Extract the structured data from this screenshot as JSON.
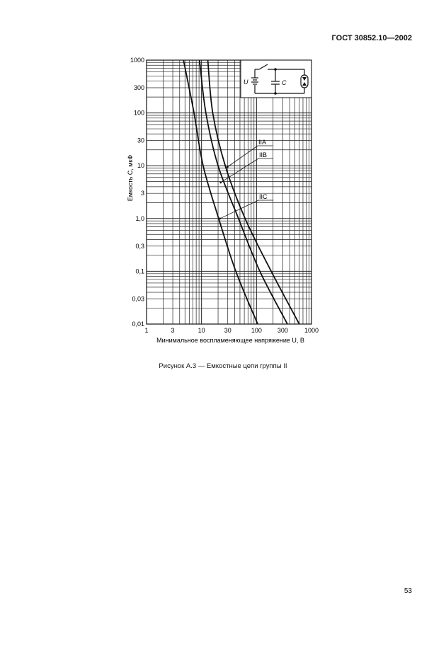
{
  "header": {
    "standard": "ГОСТ 30852.10—2002"
  },
  "caption": "Рисунок А.3 — Емкостные цепи группы II",
  "page_number": "53",
  "chart_data": {
    "type": "line",
    "title": "",
    "xlabel": "Минимальное воспламеняющее напряжение U, В",
    "ylabel": "Емкость C, мкФ",
    "x_scale": "log",
    "y_scale": "log",
    "xlim": [
      1,
      1000
    ],
    "ylim": [
      0.01,
      1000
    ],
    "grid": true,
    "x_ticks": [
      {
        "v": 1,
        "label": "1"
      },
      {
        "v": 3,
        "label": "3"
      },
      {
        "v": 10,
        "label": "10"
      },
      {
        "v": 30,
        "label": "30"
      },
      {
        "v": 100,
        "label": "100"
      },
      {
        "v": 300,
        "label": "300"
      },
      {
        "v": 1000,
        "label": "1000"
      }
    ],
    "y_ticks": [
      {
        "v": 1000,
        "label": "1000"
      },
      {
        "v": 300,
        "label": "300"
      },
      {
        "v": 100,
        "label": "100"
      },
      {
        "v": 30,
        "label": "30"
      },
      {
        "v": 10,
        "label": "10"
      },
      {
        "v": 3,
        "label": "3"
      },
      {
        "v": 1,
        "label": "1,0"
      },
      {
        "v": 0.3,
        "label": "0,3"
      },
      {
        "v": 0.1,
        "label": "0,1"
      },
      {
        "v": 0.03,
        "label": "0,03"
      },
      {
        "v": 0.01,
        "label": "0,01"
      }
    ],
    "series": [
      {
        "name": "IIA",
        "points": [
          [
            13,
            1000
          ],
          [
            16,
            100
          ],
          [
            27,
            10
          ],
          [
            62,
            1
          ],
          [
            185,
            0.1
          ],
          [
            600,
            0.01
          ]
        ]
      },
      {
        "name": "IIB",
        "points": [
          [
            9.2,
            1000
          ],
          [
            12,
            100
          ],
          [
            20,
            10
          ],
          [
            47,
            1
          ],
          [
            115,
            0.1
          ],
          [
            365,
            0.01
          ]
        ]
      },
      {
        "name": "IIC",
        "points": [
          [
            4.7,
            1000
          ],
          [
            7.3,
            100
          ],
          [
            10.7,
            10
          ],
          [
            20.5,
            1
          ],
          [
            42,
            0.1
          ],
          [
            105,
            0.01
          ]
        ]
      }
    ],
    "inset": {
      "labels": {
        "voltage": "U",
        "capacitor": "C"
      }
    }
  }
}
